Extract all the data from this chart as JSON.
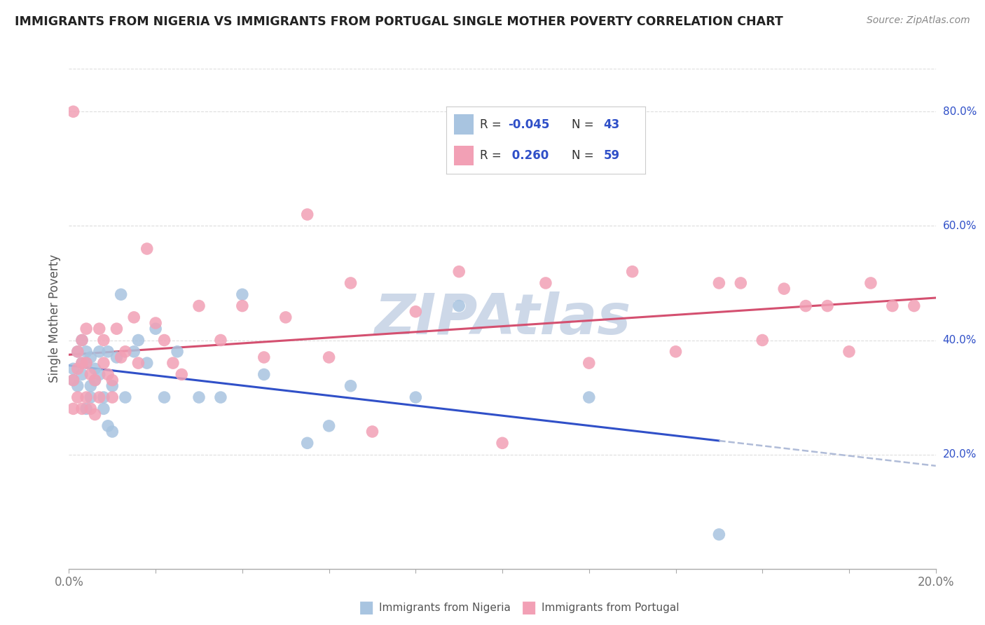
{
  "title": "IMMIGRANTS FROM NIGERIA VS IMMIGRANTS FROM PORTUGAL SINGLE MOTHER POVERTY CORRELATION CHART",
  "source": "Source: ZipAtlas.com",
  "ylabel": "Single Mother Poverty",
  "legend_label1": "Immigrants from Nigeria",
  "legend_label2": "Immigrants from Portugal",
  "R_nigeria": -0.045,
  "N_nigeria": 43,
  "R_portugal": 0.26,
  "N_portugal": 59,
  "color_nigeria": "#a8c4e0",
  "color_portugal": "#f2a0b5",
  "line_color_nigeria": "#3050c8",
  "line_color_portugal": "#d45070",
  "line_color_nigeria_dash": "#b0bcd8",
  "watermark_color": "#cdd8e8",
  "nigeria_x": [
    0.001,
    0.001,
    0.002,
    0.002,
    0.003,
    0.003,
    0.003,
    0.004,
    0.004,
    0.004,
    0.005,
    0.005,
    0.005,
    0.006,
    0.006,
    0.007,
    0.007,
    0.008,
    0.008,
    0.009,
    0.009,
    0.01,
    0.01,
    0.011,
    0.012,
    0.013,
    0.015,
    0.016,
    0.018,
    0.02,
    0.022,
    0.025,
    0.03,
    0.035,
    0.04,
    0.045,
    0.055,
    0.06,
    0.065,
    0.08,
    0.09,
    0.12,
    0.15
  ],
  "nigeria_y": [
    0.33,
    0.35,
    0.32,
    0.38,
    0.34,
    0.36,
    0.4,
    0.28,
    0.36,
    0.38,
    0.3,
    0.32,
    0.37,
    0.35,
    0.33,
    0.34,
    0.38,
    0.28,
    0.3,
    0.38,
    0.25,
    0.32,
    0.24,
    0.37,
    0.48,
    0.3,
    0.38,
    0.4,
    0.36,
    0.42,
    0.3,
    0.38,
    0.3,
    0.3,
    0.48,
    0.34,
    0.22,
    0.25,
    0.32,
    0.3,
    0.46,
    0.3,
    0.06
  ],
  "portugal_x": [
    0.001,
    0.001,
    0.001,
    0.002,
    0.002,
    0.002,
    0.003,
    0.003,
    0.003,
    0.004,
    0.004,
    0.004,
    0.005,
    0.005,
    0.006,
    0.006,
    0.007,
    0.007,
    0.008,
    0.008,
    0.009,
    0.01,
    0.01,
    0.011,
    0.012,
    0.013,
    0.015,
    0.016,
    0.018,
    0.02,
    0.022,
    0.024,
    0.026,
    0.03,
    0.035,
    0.04,
    0.045,
    0.05,
    0.055,
    0.06,
    0.065,
    0.07,
    0.08,
    0.09,
    0.1,
    0.11,
    0.12,
    0.13,
    0.14,
    0.15,
    0.155,
    0.16,
    0.165,
    0.17,
    0.175,
    0.18,
    0.185,
    0.19,
    0.195
  ],
  "portugal_y": [
    0.28,
    0.33,
    0.8,
    0.3,
    0.35,
    0.38,
    0.28,
    0.36,
    0.4,
    0.3,
    0.36,
    0.42,
    0.28,
    0.34,
    0.27,
    0.33,
    0.3,
    0.42,
    0.36,
    0.4,
    0.34,
    0.3,
    0.33,
    0.42,
    0.37,
    0.38,
    0.44,
    0.36,
    0.56,
    0.43,
    0.4,
    0.36,
    0.34,
    0.46,
    0.4,
    0.46,
    0.37,
    0.44,
    0.62,
    0.37,
    0.5,
    0.24,
    0.45,
    0.52,
    0.22,
    0.5,
    0.36,
    0.52,
    0.38,
    0.5,
    0.5,
    0.4,
    0.49,
    0.46,
    0.46,
    0.38,
    0.5,
    0.46,
    0.46
  ],
  "xlim": [
    0.0,
    0.2
  ],
  "ylim": [
    0.0,
    0.875
  ],
  "right_ytick_vals": [
    0.2,
    0.4,
    0.6,
    0.8
  ],
  "right_ytick_labels": [
    "20.0%",
    "40.0%",
    "60.0%",
    "80.0%"
  ],
  "n_xticks": 11,
  "grid_color": "#dddddd",
  "spine_color": "#aaaaaa",
  "tick_color": "#777777",
  "title_color": "#222222",
  "source_color": "#888888",
  "ylabel_color": "#555555"
}
